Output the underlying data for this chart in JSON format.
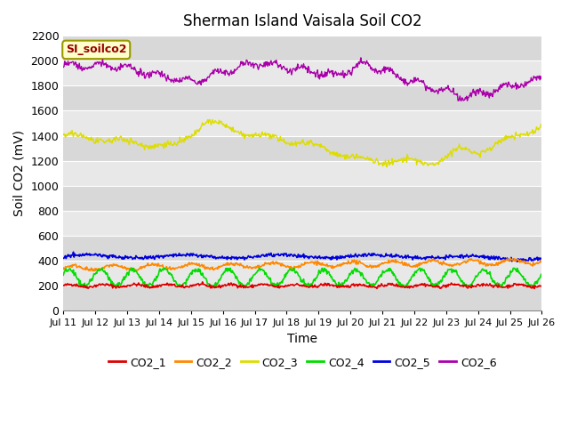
{
  "title": "Sherman Island Vaisala Soil CO2",
  "xlabel": "Time",
  "ylabel": "Soil CO2 (mV)",
  "ylim": [
    0,
    2200
  ],
  "yticks": [
    0,
    200,
    400,
    600,
    800,
    1000,
    1200,
    1400,
    1600,
    1800,
    2000,
    2200
  ],
  "x_labels": [
    "Jul 11",
    "Jul 12",
    "Jul 13",
    "Jul 14",
    "Jul 15",
    "Jul 16",
    "Jul 17",
    "Jul 18",
    "Jul 19",
    "Jul 20",
    "Jul 21",
    "Jul 22",
    "Jul 23",
    "Jul 24",
    "Jul 25",
    "Jul 26"
  ],
  "n_days": 15,
  "series_colors": {
    "CO2_1": "#dd0000",
    "CO2_2": "#ff8800",
    "CO2_3": "#dddd00",
    "CO2_4": "#00dd00",
    "CO2_5": "#0000dd",
    "CO2_6": "#aa00aa"
  },
  "legend_colors": [
    "#dd0000",
    "#ff8800",
    "#dddd00",
    "#00dd00",
    "#0000dd",
    "#aa00aa"
  ],
  "legend_labels": [
    "CO2_1",
    "CO2_2",
    "CO2_3",
    "CO2_4",
    "CO2_5",
    "CO2_6"
  ],
  "annotation_text": "SI_soilco2",
  "annotation_bg": "#ffffcc",
  "annotation_border": "#999900",
  "annotation_text_color": "#990000",
  "band_light": "#e8e8e8",
  "band_dark": "#d8d8d8",
  "grid_color": "#ffffff",
  "title_fontsize": 12,
  "label_fontsize": 10,
  "tick_fontsize": 9
}
